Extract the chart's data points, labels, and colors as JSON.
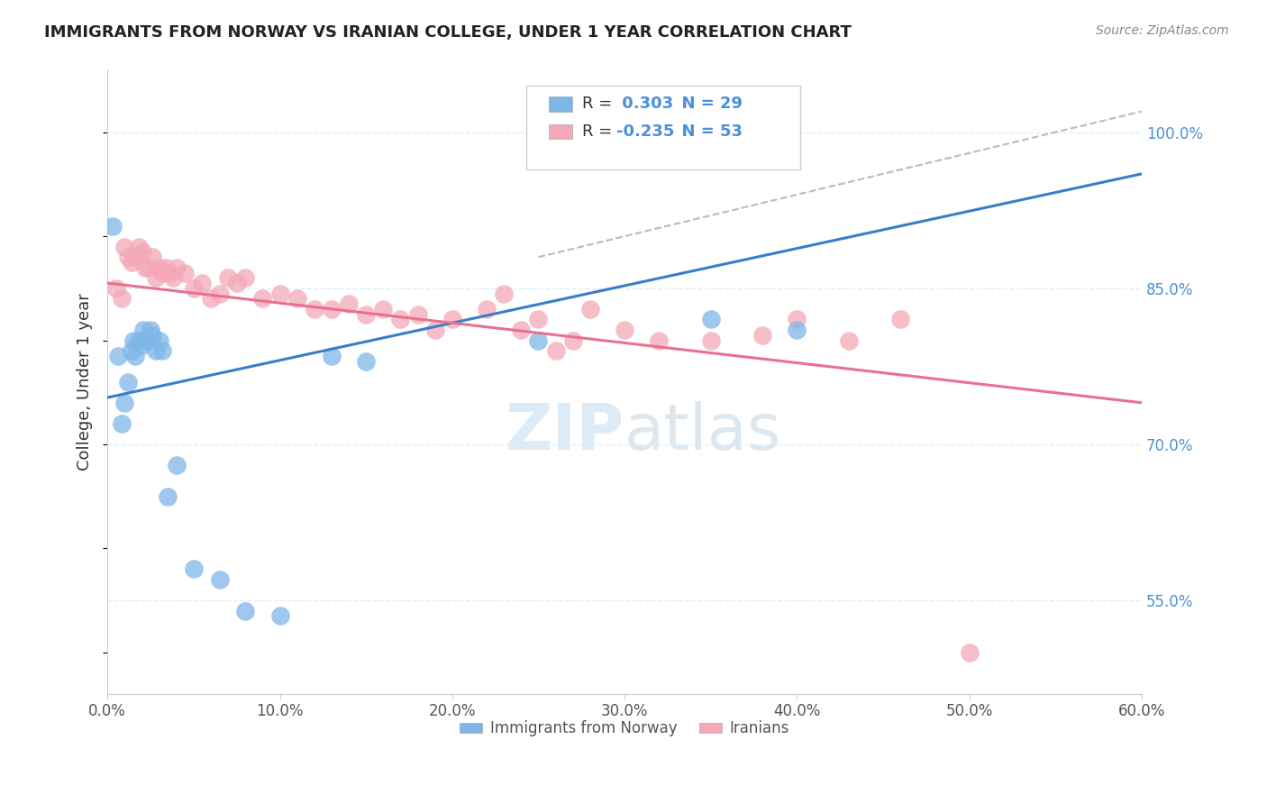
{
  "title": "IMMIGRANTS FROM NORWAY VS IRANIAN COLLEGE, UNDER 1 YEAR CORRELATION CHART",
  "source": "Source: ZipAtlas.com",
  "ylabel": "College, Under 1 year",
  "xlim": [
    0.0,
    60.0
  ],
  "ylim": [
    46.0,
    106.0
  ],
  "norway_r": 0.303,
  "norway_n": 29,
  "iran_r": -0.235,
  "iran_n": 53,
  "norway_color": "#7EB6E8",
  "iran_color": "#F4A8B8",
  "norway_line_color": "#3A7DC9",
  "iran_line_color": "#E87090",
  "ref_line_color": "#BBBBBB",
  "background_color": "#FFFFFF",
  "grid_color": "#DDEEFF",
  "norway_x": [
    0.3,
    0.6,
    0.8,
    1.0,
    1.2,
    1.4,
    1.5,
    1.6,
    1.8,
    2.0,
    2.1,
    2.2,
    2.3,
    2.5,
    2.6,
    2.8,
    3.0,
    3.2,
    3.5,
    4.0,
    5.0,
    6.5,
    8.0,
    10.0,
    13.0,
    15.0,
    25.0,
    35.0,
    40.0
  ],
  "norway_y": [
    91.0,
    78.5,
    72.0,
    74.0,
    76.0,
    79.0,
    80.0,
    78.5,
    80.0,
    79.5,
    81.0,
    80.0,
    80.0,
    81.0,
    80.5,
    79.0,
    80.0,
    79.0,
    65.0,
    68.0,
    58.0,
    57.0,
    54.0,
    53.5,
    78.5,
    78.0,
    80.0,
    82.0,
    81.0
  ],
  "iran_x": [
    0.5,
    0.8,
    1.0,
    1.2,
    1.4,
    1.6,
    1.8,
    2.0,
    2.2,
    2.4,
    2.6,
    2.8,
    3.0,
    3.2,
    3.4,
    3.6,
    3.8,
    4.0,
    4.5,
    5.0,
    5.5,
    6.0,
    6.5,
    7.0,
    7.5,
    8.0,
    9.0,
    10.0,
    11.0,
    12.0,
    13.0,
    14.0,
    15.0,
    16.0,
    17.0,
    18.0,
    19.0,
    20.0,
    22.0,
    23.0,
    24.0,
    25.0,
    26.0,
    27.0,
    28.0,
    30.0,
    32.0,
    35.0,
    38.0,
    40.0,
    43.0,
    46.0,
    50.0
  ],
  "iran_y": [
    85.0,
    84.0,
    89.0,
    88.0,
    87.5,
    88.0,
    89.0,
    88.5,
    87.0,
    87.0,
    88.0,
    86.0,
    87.0,
    86.5,
    87.0,
    86.5,
    86.0,
    87.0,
    86.5,
    85.0,
    85.5,
    84.0,
    84.5,
    86.0,
    85.5,
    86.0,
    84.0,
    84.5,
    84.0,
    83.0,
    83.0,
    83.5,
    82.5,
    83.0,
    82.0,
    82.5,
    81.0,
    82.0,
    83.0,
    84.5,
    81.0,
    82.0,
    79.0,
    80.0,
    83.0,
    81.0,
    80.0,
    80.0,
    80.5,
    82.0,
    80.0,
    82.0,
    50.0
  ],
  "norway_trend_x0": 0.0,
  "norway_trend_y0": 74.5,
  "norway_trend_x1": 60.0,
  "norway_trend_y1": 96.0,
  "iran_trend_x0": 0.0,
  "iran_trend_y0": 85.5,
  "iran_trend_x1": 60.0,
  "iran_trend_y1": 74.0,
  "ref_line_x0": 25.0,
  "ref_line_y0": 88.0,
  "ref_line_x1": 60.0,
  "ref_line_y1": 102.0,
  "yticks": [
    55.0,
    70.0,
    85.0,
    100.0
  ],
  "ytick_labels": [
    "55.0%",
    "70.0%",
    "85.0%",
    "100.0%"
  ],
  "xticks": [
    0,
    10,
    20,
    30,
    40,
    50,
    60
  ],
  "xtick_labels": [
    "0.0%",
    "10.0%",
    "20.0%",
    "30.0%",
    "40.0%",
    "50.0%",
    "60.0%"
  ],
  "tick_label_color": "#555555",
  "right_tick_color": "#4A90D9",
  "title_color": "#222222",
  "source_color": "#888888",
  "ylabel_color": "#333333"
}
